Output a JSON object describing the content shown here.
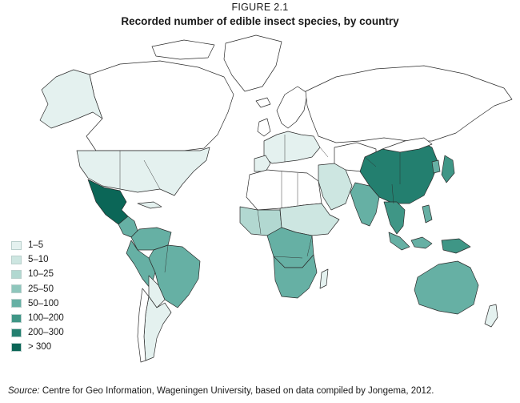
{
  "figure_label": "FIGURE 2.1",
  "title": "Recorded number of edible insect species, by country",
  "legend": [
    {
      "label": "1–5",
      "color": "#e4f1ef"
    },
    {
      "label": "5–10",
      "color": "#cde6e1"
    },
    {
      "label": "10–25",
      "color": "#b2d8d1"
    },
    {
      "label": "25–50",
      "color": "#8ec6bc"
    },
    {
      "label": "50–100",
      "color": "#66b0a4"
    },
    {
      "label": "100–200",
      "color": "#3f9686"
    },
    {
      "label": "200–300",
      "color": "#237f6f"
    },
    {
      "label": "> 300",
      "color": "#0b6657"
    }
  ],
  "source": {
    "prefix": "Source:",
    "text": " Centre for Geo Information, Wageningen University, based on data compiled by Jongema, 2012."
  }
}
